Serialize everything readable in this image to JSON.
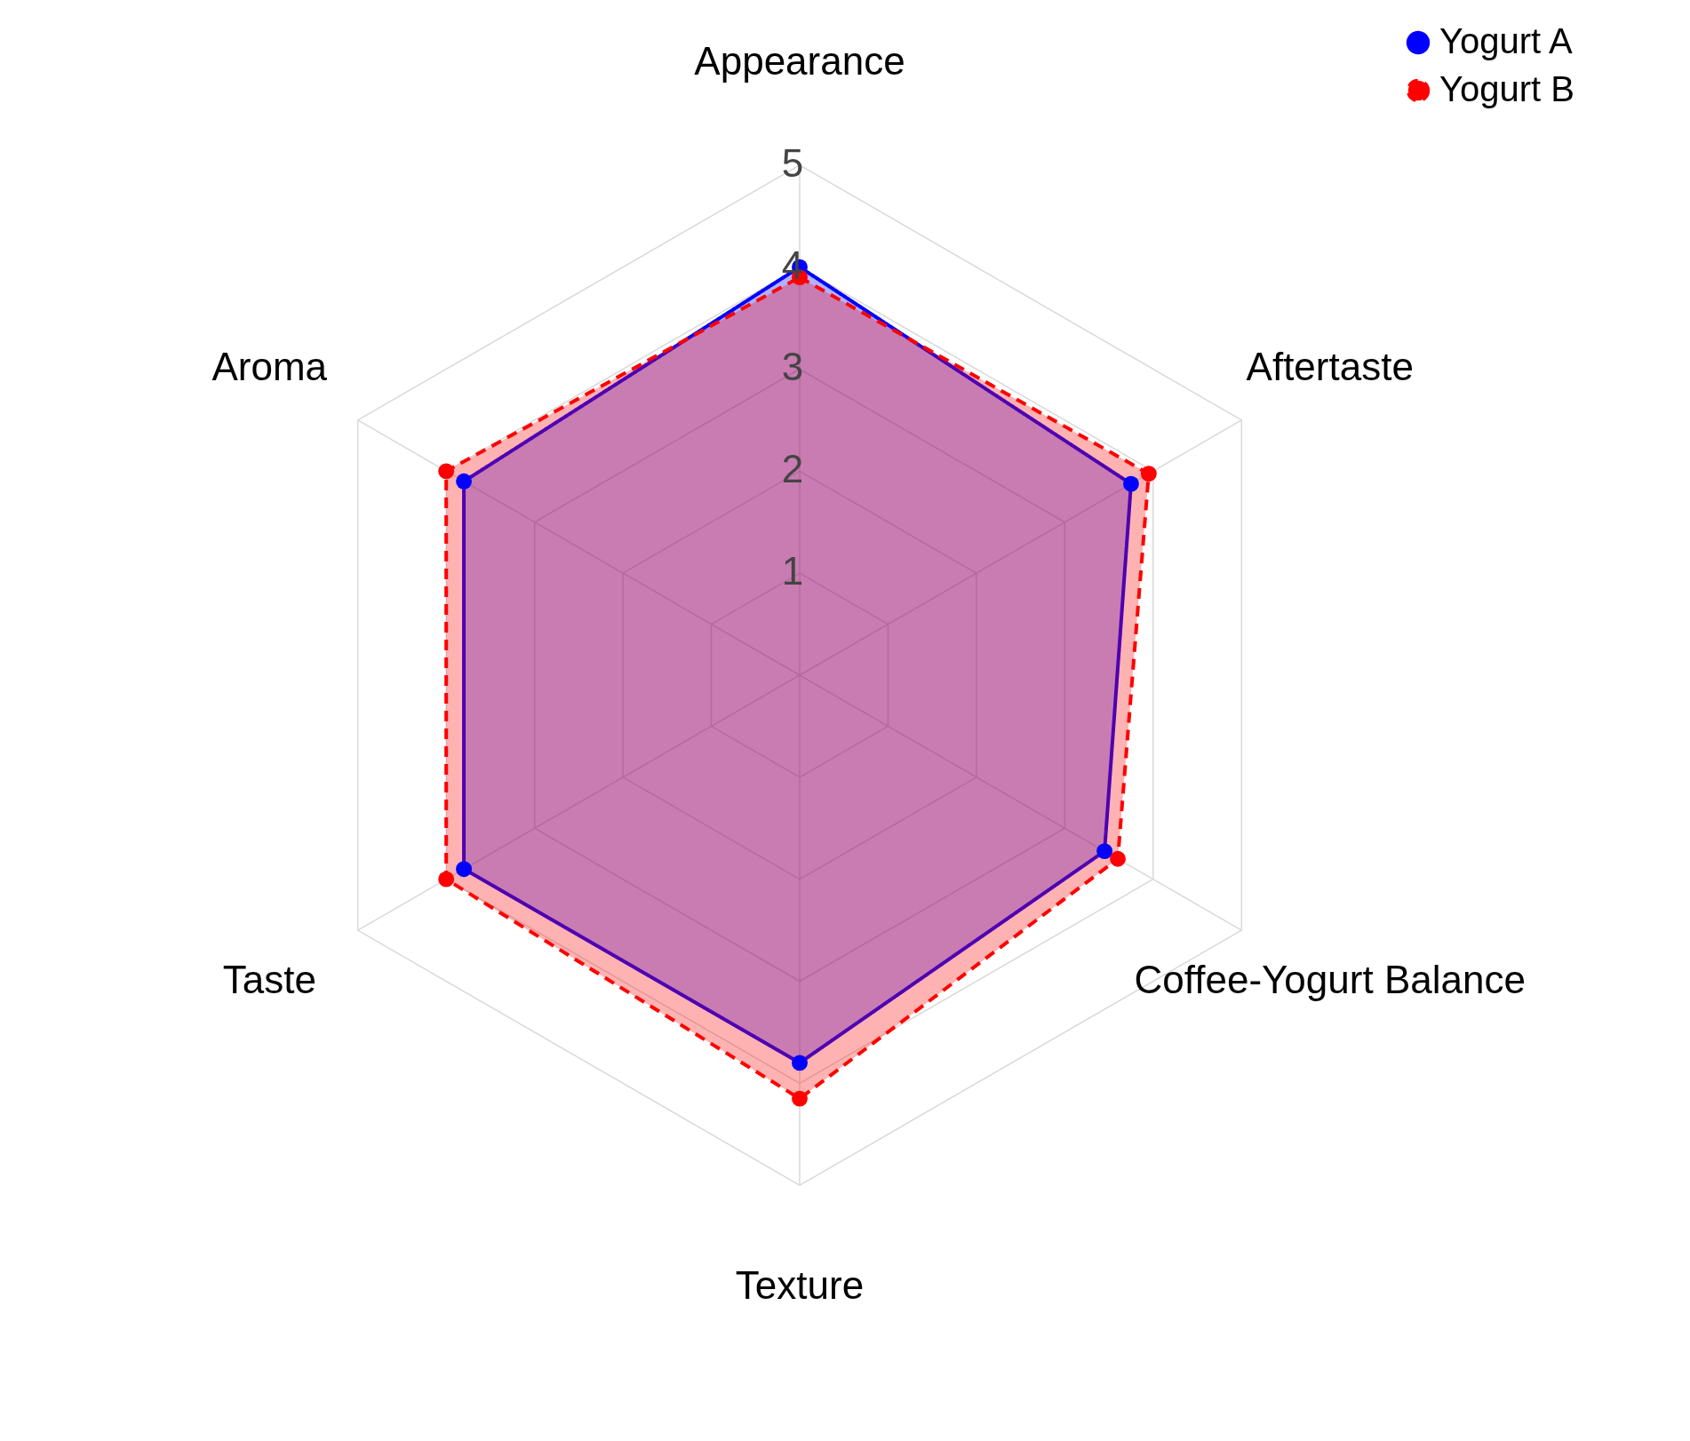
{
  "chart_data": {
    "type": "radar",
    "categories": [
      "Appearance",
      "Aftertaste",
      "Coffee-Yogurt Balance",
      "Texture",
      "Taste",
      "Aroma"
    ],
    "series": [
      {
        "name": "Yogurt A",
        "color": "#0000ff",
        "values": [
          4.0,
          3.75,
          3.45,
          3.8,
          3.8,
          3.8
        ],
        "line_style": "solid"
      },
      {
        "name": "Yogurt B",
        "color": "#ff0000",
        "values": [
          3.9,
          3.95,
          3.6,
          4.15,
          4.0,
          4.0
        ],
        "line_style": "dashed"
      }
    ],
    "ylim": [
      0,
      5
    ],
    "yticks": [
      1,
      2,
      3,
      4,
      5
    ],
    "grid": true,
    "legend": "top right",
    "marker": "circle"
  }
}
